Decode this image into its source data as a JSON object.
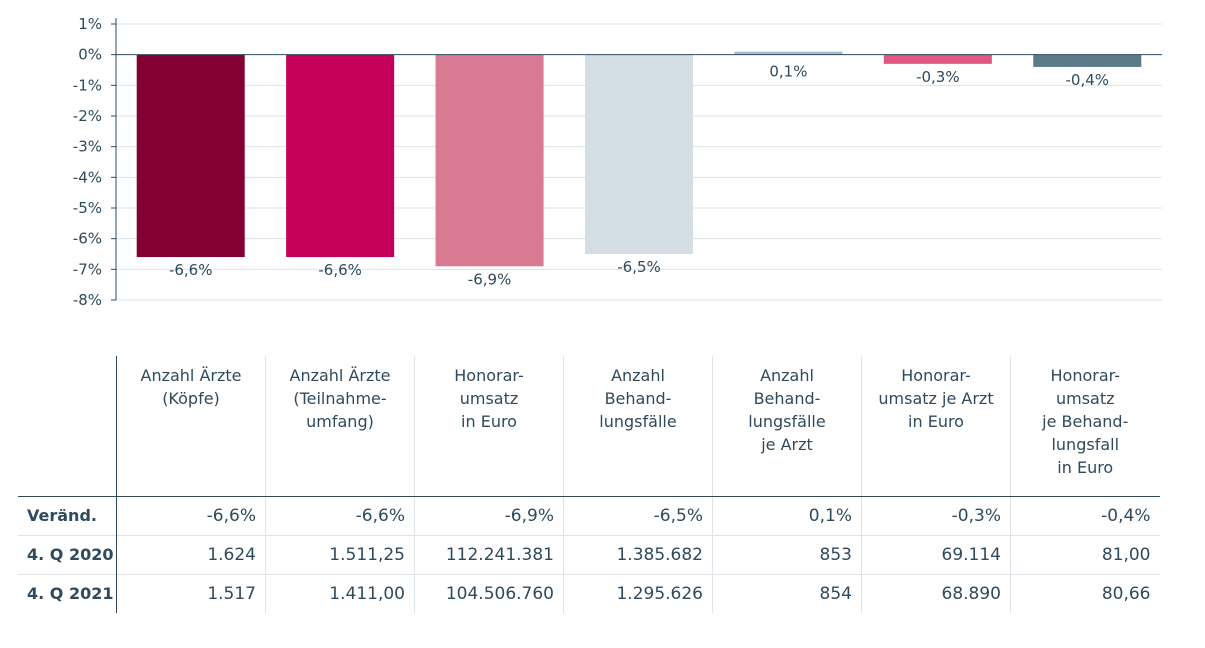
{
  "chart_data": {
    "type": "bar",
    "categories": [
      "Anzahl Ärzte (Köpfe)",
      "Anzahl Ärzte (Teilnahmeumfang)",
      "Honorarumsatz in Euro",
      "Anzahl Behandlungsfälle",
      "Anzahl Behandlungsfälle je Arzt",
      "Honorarumsatz je Arzt in Euro",
      "Honorarumsatz je Behandlungsfall in Euro"
    ],
    "values": [
      -6.6,
      -6.6,
      -6.9,
      -6.5,
      0.1,
      -0.3,
      -0.4
    ],
    "data_labels": [
      "-6,6%",
      "-6,6%",
      "-6,9%",
      "-6,5%",
      "0,1%",
      "-0,3%",
      "-0,4%"
    ],
    "colors": [
      "#820033",
      "#c5005a",
      "#d97a93",
      "#d4dee5",
      "#a9bac6",
      "#e0577f",
      "#5b7b8b"
    ],
    "ylim": [
      -8,
      1
    ],
    "yticks": [
      1,
      0,
      -1,
      -2,
      -3,
      -4,
      -5,
      -6,
      -7,
      -8
    ],
    "ytick_labels": [
      "1%",
      "0%",
      "-1%",
      "-2%",
      "-3%",
      "-4%",
      "-5%",
      "-6%",
      "-7%",
      "-8%"
    ],
    "grid": true,
    "title": "",
    "xlabel": "",
    "ylabel": ""
  },
  "table": {
    "headers": [
      "Anzahl Ärzte\n(Köpfe)",
      "Anzahl Ärzte\n(Teilnahme-\numfang)",
      "Honorar-\numsatz\nin Euro",
      "Anzahl\nBehand-\nlungsfälle",
      "Anzahl\nBehand-\nlungsfälle\nje Arzt",
      "Honorar-\numsatz je Arzt\nin Euro",
      "Honorar-\numsatz\nje Behand-\nlungsfall\nin Euro"
    ],
    "rows": [
      {
        "label": "Veränd.",
        "values": [
          "-6,6%",
          "-6,6%",
          "-6,9%",
          "-6,5%",
          "0,1%",
          "-0,3%",
          "-0,4%"
        ]
      },
      {
        "label": "4. Q 2020",
        "values": [
          "1.624",
          "1.511,25",
          "112.241.381",
          "1.385.682",
          "853",
          "69.114",
          "81,00"
        ]
      },
      {
        "label": "4. Q 2021",
        "values": [
          "1.517",
          "1.411,00",
          "104.506.760",
          "1.295.626",
          "854",
          "68.890",
          "80,66"
        ]
      }
    ]
  },
  "colors": {
    "text": "#2f4a5c",
    "grid": "#dde3e8",
    "axis": "#2f4a5c"
  }
}
